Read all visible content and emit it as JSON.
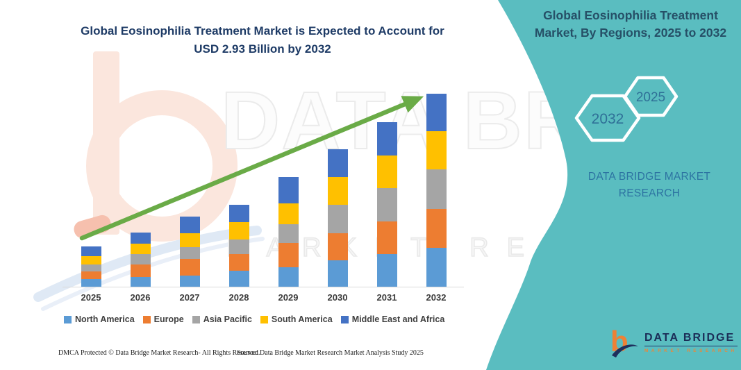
{
  "header": {
    "title_line1": "Global Eosinophilia Treatment Market is Expected to Account for",
    "title_line2": "USD 2.93 Billion by 2032"
  },
  "panel": {
    "title_line1": "Global Eosinophilia Treatment",
    "title_line2": "Market, By Regions, 2025 to 2032",
    "hexagons": [
      "2032",
      "2025"
    ],
    "caption_line1": "DATA BRIDGE MARKET",
    "caption_line2": "RESEARCH",
    "logo_brand": "DATA BRIDGE",
    "logo_sub": "MARKET RESEARCH",
    "accent_color": "#5abdc0"
  },
  "watermark": {
    "line1": "DATA BRIDGE",
    "line2": "MARKET RESEARCH"
  },
  "footer": {
    "left": "DMCA Protected © Data Bridge Market Research-  All Rights Reserved.",
    "right": "Source: Data Bridge Market Research  Market Analysis Study 2025"
  },
  "chart_data": {
    "type": "bar",
    "stacked": true,
    "title": "Global Eosinophilia Treatment Market is Expected to Account for USD 2.93 Billion by 2032",
    "value_unit": "USD Billion",
    "categories": [
      "2025",
      "2026",
      "2027",
      "2028",
      "2029",
      "2030",
      "2031",
      "2032"
    ],
    "series": [
      {
        "name": "North America",
        "color": "#5B9BD5",
        "values": [
          0.12,
          0.15,
          0.17,
          0.24,
          0.3,
          0.4,
          0.5,
          0.59
        ]
      },
      {
        "name": "Europe",
        "color": "#ED7D31",
        "values": [
          0.12,
          0.19,
          0.25,
          0.26,
          0.37,
          0.41,
          0.5,
          0.59
        ]
      },
      {
        "name": "Asia Pacific",
        "color": "#A5A5A5",
        "values": [
          0.11,
          0.16,
          0.18,
          0.22,
          0.29,
          0.44,
          0.51,
          0.6
        ]
      },
      {
        "name": "South America",
        "color": "#FFC000",
        "values": [
          0.13,
          0.16,
          0.21,
          0.27,
          0.32,
          0.42,
          0.5,
          0.58
        ]
      },
      {
        "name": "Middle East and Africa",
        "color": "#4472C4",
        "values": [
          0.15,
          0.17,
          0.25,
          0.27,
          0.4,
          0.42,
          0.51,
          0.57
        ]
      }
    ],
    "totals": [
      0.63,
      0.83,
      1.06,
      1.26,
      1.68,
      2.09,
      2.52,
      2.93
    ],
    "final_year_total": 2.93,
    "trend_arrow_color": "#6aab47",
    "legend_position": "bottom",
    "gridlines": false,
    "y_axis_visible": false
  }
}
